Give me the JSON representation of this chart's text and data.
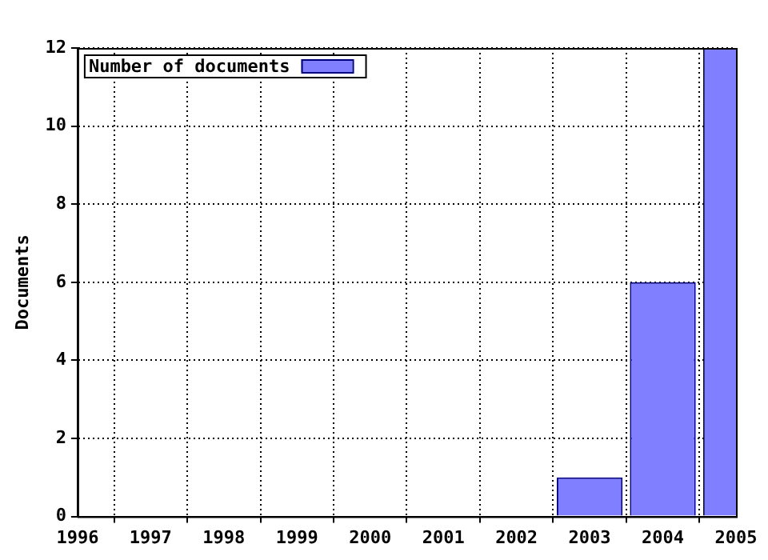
{
  "chart_data": {
    "type": "bar",
    "ylabel": "Documents",
    "x": [
      2003,
      2004,
      2005
    ],
    "series": [
      {
        "name": "Number of documents",
        "color": "#7f7fff",
        "values": [
          1,
          6,
          12
        ]
      }
    ],
    "xlim": [
      1996,
      2005
    ],
    "xticks": [
      1996,
      1997,
      1998,
      1999,
      2000,
      2001,
      2002,
      2003,
      2004,
      2005
    ],
    "ylim": [
      0,
      12
    ],
    "yticks": [
      0,
      2,
      4,
      6,
      8,
      10,
      12
    ],
    "grid": true,
    "legend": "top left"
  }
}
